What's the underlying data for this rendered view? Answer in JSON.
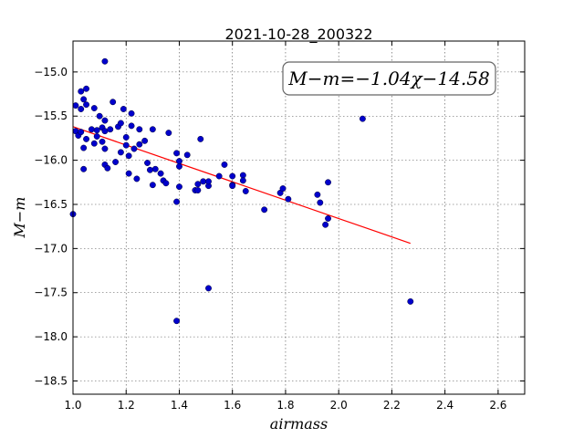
{
  "chart_data": {
    "type": "scatter",
    "title": "2021-10-28_200322",
    "xlabel": "airmass",
    "ylabel": "M−m",
    "xlim": [
      1.0,
      2.7
    ],
    "ylim": [
      -18.65,
      -14.65
    ],
    "y_inverted": true,
    "grid": true,
    "x_ticks": [
      1.0,
      1.2,
      1.4,
      1.6,
      1.8,
      2.0,
      2.2,
      2.4,
      2.6
    ],
    "x_tick_labels": [
      "1.0",
      "1.2",
      "1.4",
      "1.6",
      "1.8",
      "2.0",
      "2.2",
      "2.4",
      "2.6"
    ],
    "y_ticks": [
      -15.0,
      -15.5,
      -16.0,
      -16.5,
      -17.0,
      -17.5,
      -18.0,
      -18.5
    ],
    "y_tick_labels": [
      "−15.0",
      "−15.5",
      "−16.0",
      "−16.5",
      "−17.0",
      "−17.5",
      "−18.0",
      "−18.5"
    ],
    "annotation": "M−m=−1.04χ−14.58",
    "point_color": "#0000cc",
    "fit_color": "#ff0000",
    "fit_line": {
      "slope": -1.04,
      "intercept": -14.58,
      "x_start": 1.0,
      "x_end": 2.27
    },
    "points": [
      [
        1.0,
        -16.61
      ],
      [
        1.01,
        -15.38
      ],
      [
        1.01,
        -15.67
      ],
      [
        1.02,
        -15.72
      ],
      [
        1.03,
        -15.22
      ],
      [
        1.03,
        -15.42
      ],
      [
        1.03,
        -15.68
      ],
      [
        1.04,
        -15.86
      ],
      [
        1.04,
        -15.31
      ],
      [
        1.04,
        -16.1
      ],
      [
        1.05,
        -15.19
      ],
      [
        1.05,
        -15.37
      ],
      [
        1.05,
        -15.76
      ],
      [
        1.07,
        -15.65
      ],
      [
        1.08,
        -15.41
      ],
      [
        1.08,
        -15.81
      ],
      [
        1.09,
        -15.66
      ],
      [
        1.09,
        -15.73
      ],
      [
        1.1,
        -15.5
      ],
      [
        1.11,
        -15.63
      ],
      [
        1.11,
        -15.79
      ],
      [
        1.12,
        -14.88
      ],
      [
        1.12,
        -15.55
      ],
      [
        1.12,
        -15.67
      ],
      [
        1.12,
        -15.87
      ],
      [
        1.12,
        -16.05
      ],
      [
        1.13,
        -16.09
      ],
      [
        1.14,
        -15.65
      ],
      [
        1.15,
        -15.34
      ],
      [
        1.16,
        -16.02
      ],
      [
        1.17,
        -15.62
      ],
      [
        1.18,
        -15.58
      ],
      [
        1.18,
        -15.91
      ],
      [
        1.19,
        -15.42
      ],
      [
        1.2,
        -15.74
      ],
      [
        1.2,
        -15.83
      ],
      [
        1.21,
        -15.95
      ],
      [
        1.21,
        -16.15
      ],
      [
        1.22,
        -15.47
      ],
      [
        1.22,
        -15.61
      ],
      [
        1.23,
        -15.87
      ],
      [
        1.24,
        -16.21
      ],
      [
        1.25,
        -15.65
      ],
      [
        1.25,
        -15.82
      ],
      [
        1.27,
        -15.78
      ],
      [
        1.28,
        -16.03
      ],
      [
        1.29,
        -16.11
      ],
      [
        1.3,
        -16.28
      ],
      [
        1.3,
        -15.65
      ],
      [
        1.31,
        -16.1
      ],
      [
        1.33,
        -16.15
      ],
      [
        1.34,
        -16.23
      ],
      [
        1.35,
        -16.26
      ],
      [
        1.36,
        -15.69
      ],
      [
        1.39,
        -17.82
      ],
      [
        1.39,
        -16.47
      ],
      [
        1.39,
        -15.92
      ],
      [
        1.4,
        -16.07
      ],
      [
        1.4,
        -16.01
      ],
      [
        1.4,
        -16.3
      ],
      [
        1.43,
        -15.94
      ],
      [
        1.46,
        -16.34
      ],
      [
        1.47,
        -16.27
      ],
      [
        1.47,
        -16.34
      ],
      [
        1.48,
        -15.76
      ],
      [
        1.49,
        -16.24
      ],
      [
        1.51,
        -16.29
      ],
      [
        1.51,
        -16.24
      ],
      [
        1.51,
        -17.45
      ],
      [
        1.55,
        -16.18
      ],
      [
        1.57,
        -16.05
      ],
      [
        1.6,
        -16.18
      ],
      [
        1.6,
        -16.28
      ],
      [
        1.6,
        -16.29
      ],
      [
        1.64,
        -16.17
      ],
      [
        1.64,
        -16.23
      ],
      [
        1.65,
        -16.35
      ],
      [
        1.72,
        -16.56
      ],
      [
        1.78,
        -16.37
      ],
      [
        1.79,
        -16.32
      ],
      [
        1.81,
        -16.44
      ],
      [
        1.92,
        -16.39
      ],
      [
        1.93,
        -16.48
      ],
      [
        1.95,
        -16.73
      ],
      [
        1.96,
        -16.25
      ],
      [
        1.96,
        -16.66
      ],
      [
        2.09,
        -15.53
      ],
      [
        2.27,
        -17.6
      ]
    ]
  }
}
